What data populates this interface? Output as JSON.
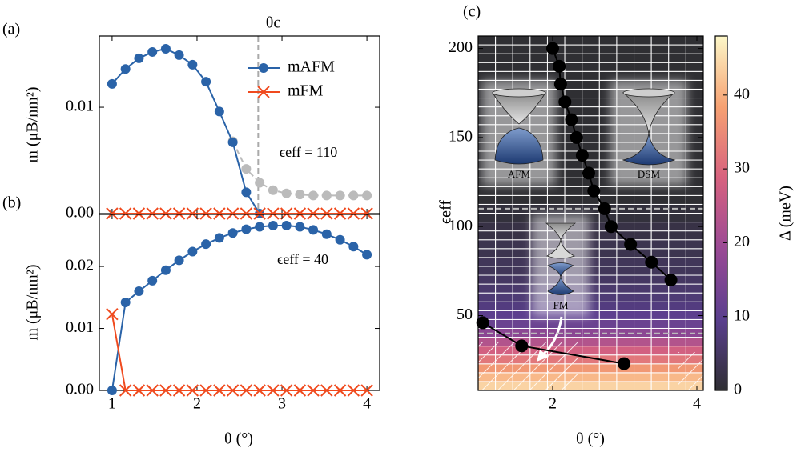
{
  "chart_data": [
    {
      "type": "line",
      "panel_label": "(a)",
      "title": "θc",
      "annotation": "ϵeff = 110",
      "ylabel": "m (μB/nm²)",
      "x": [
        1,
        1.158,
        1.316,
        1.474,
        1.632,
        1.789,
        1.947,
        2.105,
        2.263,
        2.421,
        2.579,
        2.737,
        2.895,
        3.053,
        3.211,
        3.368,
        3.526,
        3.684,
        3.842,
        4
      ],
      "series": [
        {
          "color": "#bbbbbb",
          "marker": "o",
          "linestyle": "dashed",
          "values": [
            null,
            null,
            null,
            null,
            null,
            null,
            null,
            null,
            null,
            0.0068,
            0.0042,
            0.0029,
            0.0022,
            0.0019,
            0.0018,
            0.0017,
            0.0017,
            0.0017,
            0.0017,
            0.0017
          ]
        },
        {
          "name": "mAFM",
          "color": "#2a63a8",
          "marker": "o",
          "values": [
            0.0122,
            0.0136,
            0.0146,
            0.0152,
            0.0155,
            0.0149,
            0.014,
            0.0124,
            0.0096,
            0.0067,
            0.002,
            0,
            null,
            null,
            null,
            null,
            null,
            null,
            null,
            null
          ]
        },
        {
          "name": "mFM",
          "color": "#f04a1e",
          "marker": "x",
          "values": [
            0,
            0,
            0,
            0,
            0,
            0,
            0,
            0,
            0,
            0,
            0,
            0,
            0,
            0,
            0,
            0,
            0,
            0,
            0,
            0
          ]
        }
      ],
      "xlim": [
        0.85,
        4.15
      ],
      "ylim": [
        0,
        0.0167
      ],
      "xticks": [
        1,
        2,
        3,
        4
      ],
      "show_xtick_labels": false,
      "yticks": [
        {
          "value": 0,
          "label": "0.00"
        },
        0.01
      ],
      "vlines": [
        2.72
      ],
      "legend": "upper right"
    },
    {
      "type": "line",
      "panel_label": "(b)",
      "annotation": "ϵeff = 40",
      "xlabel": "θ (°)",
      "ylabel": "m (μB/nm²)",
      "x": [
        1,
        1.158,
        1.316,
        1.474,
        1.632,
        1.789,
        1.947,
        2.105,
        2.263,
        2.421,
        2.579,
        2.737,
        2.895,
        3.053,
        3.211,
        3.368,
        3.526,
        3.684,
        3.842,
        4
      ],
      "series": [
        {
          "color": "#2a63a8",
          "marker": "o",
          "values": [
            0,
            0.0142,
            0.016,
            0.0177,
            0.0194,
            0.021,
            0.0224,
            0.0236,
            0.0246,
            0.0254,
            0.026,
            0.0264,
            0.0266,
            0.0266,
            0.0264,
            0.0259,
            0.0252,
            0.0243,
            0.0232,
            0.0219
          ]
        },
        {
          "color": "#f04a1e",
          "marker": "x",
          "values": [
            0.0123,
            0,
            0,
            0,
            0,
            0,
            0,
            0,
            0,
            0,
            0,
            0,
            0,
            0,
            0,
            0,
            0,
            0,
            0,
            0
          ]
        }
      ],
      "xlim": [
        0.85,
        4.15
      ],
      "ylim": [
        0,
        0.0284
      ],
      "xticks": [
        1,
        2,
        3,
        4
      ],
      "yticks": [
        {
          "value": 0,
          "label": "0.00"
        },
        0.01,
        0.02
      ]
    },
    {
      "type": "heatmap",
      "panel_label": "(c)",
      "xlabel": "θ (°)",
      "ylabel": "ϵeff",
      "clabel": "Δ (meV)",
      "inset_labels": [
        "AFM",
        "DSM",
        "FM"
      ],
      "xlim": [
        0.967,
        4.089
      ],
      "ylim": [
        8,
        207
      ],
      "xticks": [
        2,
        4
      ],
      "yticks": [
        50,
        100,
        150,
        200
      ],
      "clim": [
        0,
        48
      ],
      "cticks": [
        0,
        10,
        20,
        30,
        40
      ],
      "grid": true,
      "colormap": [
        "#2f2f33",
        "#5a3f8e",
        "#9a4a95",
        "#d7627f",
        "#f6a172",
        "#fcf7c8"
      ],
      "hlines": [
        110,
        40
      ],
      "z": [
        [
          44,
          44,
          44,
          44,
          44,
          44,
          44,
          44,
          44,
          44,
          44,
          44,
          44
        ],
        [
          41,
          41,
          41,
          41,
          41,
          41,
          41,
          41,
          41,
          41,
          41,
          41,
          41
        ],
        [
          37,
          37,
          37,
          37,
          37,
          37,
          37,
          37,
          37,
          37,
          37,
          37,
          37
        ],
        [
          32,
          32,
          32,
          32,
          32,
          32,
          32,
          32,
          32,
          32,
          32,
          32,
          32
        ],
        [
          28,
          28,
          28,
          28,
          28,
          28,
          28,
          28,
          28,
          28,
          28,
          28,
          28
        ],
        [
          23,
          23,
          23,
          23,
          23,
          23,
          23,
          23,
          23,
          23,
          23,
          23,
          23
        ],
        [
          17,
          17,
          17,
          17,
          17,
          17,
          17,
          17,
          17,
          17,
          17,
          17,
          17
        ],
        [
          12,
          12,
          12,
          12,
          12,
          12,
          12,
          12,
          12,
          12,
          12,
          12,
          12
        ],
        [
          10,
          10,
          10,
          10,
          10,
          10,
          10,
          10,
          10,
          10,
          10,
          10,
          10
        ],
        [
          8,
          8,
          8,
          8,
          8,
          8,
          8,
          8,
          8,
          8,
          8,
          8,
          8
        ],
        [
          7,
          7,
          7,
          7,
          7,
          7,
          7,
          7,
          7,
          7,
          7,
          7,
          7
        ],
        [
          6,
          6,
          6,
          6,
          6,
          6,
          6,
          6,
          6,
          6,
          6,
          6,
          6
        ],
        [
          5,
          5,
          5,
          5,
          5,
          5,
          5,
          5,
          5,
          5,
          5,
          5,
          5
        ],
        [
          4,
          4,
          4,
          4,
          4,
          4,
          4,
          4,
          4,
          4,
          4,
          4,
          4
        ],
        [
          4,
          4,
          4,
          4,
          4,
          4,
          4,
          4,
          4,
          4,
          4,
          4,
          4
        ],
        [
          3,
          3,
          3,
          3,
          3,
          3,
          3,
          3,
          3,
          3,
          3,
          3,
          3
        ],
        [
          3,
          3,
          3,
          3,
          3,
          3,
          3,
          3,
          3,
          3,
          3,
          3,
          3
        ],
        [
          2,
          2,
          2,
          2,
          2,
          2,
          2,
          2,
          2,
          2,
          2,
          2,
          2
        ],
        [
          2,
          2,
          2,
          2,
          2,
          2,
          2,
          2,
          2,
          2,
          2,
          2,
          2
        ],
        [
          1,
          1,
          1,
          1,
          1,
          1,
          1,
          1,
          1,
          1,
          1,
          1,
          1
        ],
        [
          1,
          1,
          1,
          1,
          1,
          1,
          1,
          1,
          1,
          1,
          1,
          1,
          1
        ],
        [
          0,
          0,
          0,
          0,
          0,
          0,
          0,
          0,
          0,
          0,
          0,
          0,
          0
        ],
        [
          0,
          0,
          0,
          0,
          0,
          0,
          0,
          0,
          0,
          0,
          0,
          0,
          0
        ],
        [
          0,
          0,
          0,
          0,
          0,
          0,
          0,
          0,
          0,
          0,
          0,
          0,
          0
        ],
        [
          0,
          0,
          0,
          0,
          0,
          0,
          0,
          0,
          0,
          0,
          0,
          0,
          0
        ],
        [
          0,
          0,
          0,
          0,
          0,
          0,
          0,
          0,
          0,
          0,
          0,
          0,
          0
        ],
        [
          0,
          0,
          0,
          0,
          0,
          0,
          0,
          0,
          0,
          0,
          0,
          0,
          0
        ],
        [
          0,
          0,
          0,
          0,
          0,
          0,
          0,
          0,
          0,
          0,
          0,
          0,
          0
        ],
        [
          0,
          0,
          0,
          0,
          0,
          0,
          0,
          0,
          0,
          0,
          0,
          0,
          0
        ],
        [
          0,
          0,
          0,
          0,
          0,
          0,
          0,
          0,
          0,
          0,
          0,
          0,
          0
        ],
        [
          0,
          0,
          0,
          0,
          0,
          0,
          0,
          0,
          0,
          0,
          0,
          0,
          0
        ],
        [
          0,
          0,
          0,
          0,
          0,
          0,
          0,
          0,
          0,
          0,
          0,
          0,
          0
        ],
        [
          0,
          0,
          0,
          0,
          0,
          0,
          0,
          0,
          0,
          0,
          0,
          0,
          0
        ],
        [
          0,
          0,
          0,
          0,
          0,
          0,
          0,
          0,
          0,
          0,
          0,
          0,
          0
        ],
        [
          0,
          0,
          0,
          0,
          0,
          0,
          0,
          0,
          0,
          0,
          0,
          0,
          0
        ],
        [
          0,
          0,
          0,
          0,
          0,
          0,
          0,
          0,
          0,
          0,
          0,
          0,
          0
        ],
        [
          0,
          0,
          0,
          0,
          0,
          0,
          0,
          0,
          0,
          0,
          0,
          0,
          0
        ],
        [
          0,
          0,
          0,
          0,
          0,
          0,
          0,
          0,
          0,
          0,
          0,
          0,
          0
        ],
        [
          0,
          0,
          0,
          0,
          0,
          0,
          0,
          0,
          0,
          0,
          0,
          0,
          0
        ],
        [
          0,
          0,
          0,
          0,
          0,
          0,
          0,
          0,
          0,
          0,
          0,
          0,
          0
        ]
      ],
      "series": [
        {
          "color": "#000000",
          "marker": "o",
          "x": [
            2.0,
            2.09,
            2.11,
            2.17,
            2.26,
            2.33,
            2.41,
            2.5,
            2.57,
            2.72,
            2.81,
            3.08,
            3.37,
            3.64
          ],
          "values": [
            200,
            190,
            180,
            170,
            160,
            150,
            140,
            130,
            120,
            110,
            100,
            90,
            80,
            70
          ]
        },
        {
          "color": "#000000",
          "marker": "o",
          "x": [
            1.03,
            1.57,
            2.99
          ],
          "values": [
            46,
            33,
            23
          ]
        }
      ]
    }
  ]
}
